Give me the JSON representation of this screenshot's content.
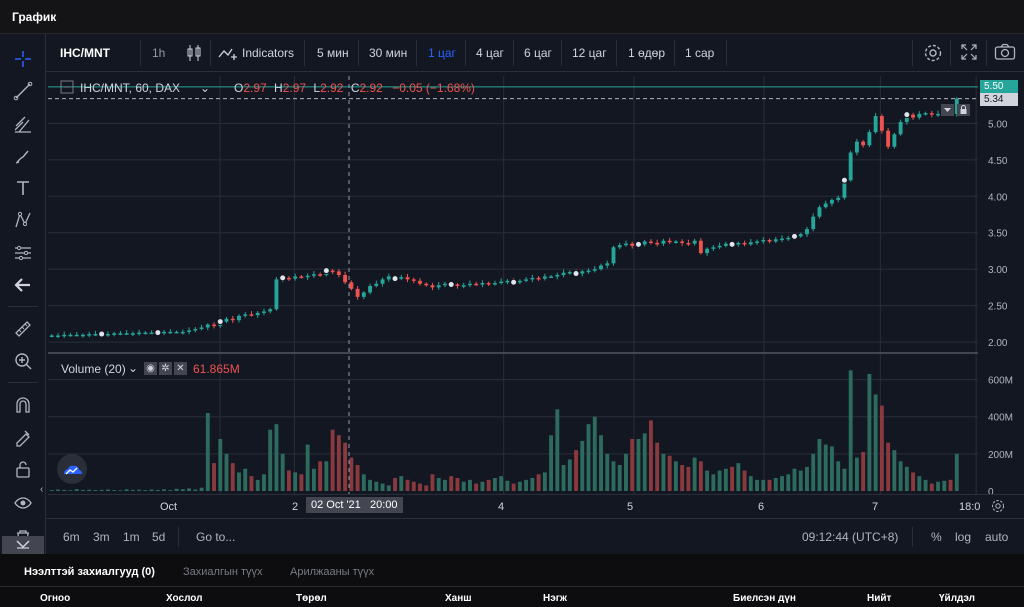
{
  "window": {
    "title": "График"
  },
  "toolbar": {
    "symbol": "IHC/MNT",
    "interval_1h": "1h",
    "indicators": "Indicators",
    "intervals": [
      "5 мин",
      "30 мин",
      "1 цаг",
      "4 цаг",
      "6 цаг",
      "12 цаг",
      "1 өдөр",
      "1 сар"
    ],
    "active_interval": "1 цаг"
  },
  "legend": {
    "title": "IHC/MNT, 60, DAX",
    "o_label": "O",
    "o_value": "2.97",
    "h_label": "H",
    "h_value": "2.97",
    "l_label": "L",
    "l_value": "2.92",
    "c_label": "C",
    "c_value": "2.92",
    "change": "−0.05 (−1.68%)"
  },
  "volume_legend": {
    "title": "Volume (20)",
    "value": "61.865M"
  },
  "price_axis": {
    "ticks": [
      "5.00",
      "4.50",
      "4.00",
      "3.50",
      "3.00",
      "2.50",
      "2.00"
    ],
    "badge_top": "5.50",
    "badge_last": "5.34"
  },
  "volume_axis": {
    "ticks": [
      "600M",
      "400M",
      "200M",
      "0"
    ]
  },
  "time_axis": {
    "ticks": [
      "Oct",
      "2",
      "4",
      "5",
      "6",
      "7",
      "18:0"
    ],
    "crosshair_label": "02 Oct '21   20:00"
  },
  "bottom": {
    "ranges": [
      "6m",
      "3m",
      "1m",
      "5d"
    ],
    "goto": "Go to...",
    "clock": "09:12:44 (UTC+8)",
    "percent": "%",
    "log": "log",
    "auto": "auto"
  },
  "orders": {
    "tabs": [
      "Нээлттэй захиалгууд (0)",
      "Захиалгын түүх",
      "Арилжааны түүх"
    ],
    "columns": [
      "Огноо",
      "Хослол",
      "Төрөл",
      "Ханш",
      "Нэгж",
      "Биелсэн дүн",
      "Нийт",
      "Үйлдэл"
    ]
  },
  "colors": {
    "up": "#26a69a",
    "down": "#ef5350",
    "bg": "#131722",
    "accent": "#2962ff"
  },
  "chart_data": {
    "type": "candlestick",
    "symbol": "IHC/MNT",
    "interval": "60",
    "ylim": [
      1.85,
      5.65
    ],
    "vol_max": 700,
    "closes": [
      2.09,
      2.09,
      2.1,
      2.1,
      2.1,
      2.1,
      2.11,
      2.11,
      2.11,
      2.11,
      2.12,
      2.12,
      2.12,
      2.12,
      2.13,
      2.13,
      2.13,
      2.13,
      2.14,
      2.14,
      2.14,
      2.14,
      2.16,
      2.18,
      2.2,
      2.24,
      2.22,
      2.28,
      2.32,
      2.3,
      2.36,
      2.38,
      2.37,
      2.4,
      2.42,
      2.45,
      2.86,
      2.88,
      2.87,
      2.9,
      2.89,
      2.91,
      2.93,
      2.92,
      2.98,
      2.97,
      2.92,
      2.82,
      2.73,
      2.62,
      2.68,
      2.77,
      2.8,
      2.86,
      2.9,
      2.87,
      2.89,
      2.86,
      2.84,
      2.8,
      2.78,
      2.75,
      2.78,
      2.8,
      2.79,
      2.77,
      2.78,
      2.8,
      2.79,
      2.81,
      2.8,
      2.81,
      2.83,
      2.84,
      2.82,
      2.84,
      2.86,
      2.88,
      2.87,
      2.9,
      2.9,
      2.92,
      2.95,
      2.96,
      2.94,
      2.97,
      2.98,
      3.0,
      3.05,
      3.08,
      3.3,
      3.33,
      3.35,
      3.32,
      3.34,
      3.38,
      3.36,
      3.35,
      3.39,
      3.37,
      3.38,
      3.36,
      3.35,
      3.39,
      3.22,
      3.28,
      3.3,
      3.32,
      3.35,
      3.34,
      3.36,
      3.34,
      3.37,
      3.38,
      3.4,
      3.38,
      3.41,
      3.42,
      3.43,
      3.45,
      3.48,
      3.55,
      3.72,
      3.85,
      3.9,
      3.95,
      3.98,
      4.22,
      4.6,
      4.75,
      4.7,
      4.88,
      5.1,
      4.9,
      4.68,
      4.85,
      5.02,
      5.12,
      5.08,
      5.13,
      5.14,
      5.12,
      5.13,
      5.15,
      5.13,
      5.34
    ],
    "volumes": [
      5,
      8,
      6,
      4,
      10,
      6,
      7,
      5,
      6,
      8,
      5,
      4,
      9,
      6,
      7,
      5,
      8,
      6,
      9,
      5,
      12,
      10,
      14,
      8,
      18,
      420,
      150,
      280,
      200,
      150,
      100,
      120,
      80,
      60,
      90,
      330,
      360,
      200,
      110,
      100,
      90,
      250,
      120,
      160,
      160,
      330,
      300,
      260,
      180,
      140,
      90,
      60,
      50,
      40,
      30,
      70,
      80,
      60,
      50,
      40,
      30,
      90,
      70,
      60,
      80,
      70,
      50,
      60,
      40,
      50,
      60,
      70,
      80,
      55,
      40,
      50,
      60,
      70,
      90,
      100,
      300,
      440,
      140,
      170,
      220,
      270,
      360,
      400,
      300,
      200,
      160,
      140,
      200,
      280,
      280,
      310,
      380,
      260,
      200,
      190,
      160,
      140,
      130,
      180,
      160,
      110,
      90,
      110,
      120,
      130,
      150,
      110,
      80,
      60,
      60,
      60,
      70,
      80,
      90,
      120,
      110,
      130,
      200,
      280,
      250,
      240,
      160,
      120,
      650,
      180,
      210,
      630,
      520,
      460,
      260,
      220,
      160,
      130,
      100,
      80,
      60,
      40,
      50,
      55,
      60,
      200
    ],
    "markers": [
      8,
      17,
      27,
      37,
      44,
      55,
      64,
      74,
      84,
      94,
      109,
      119,
      127,
      137,
      146
    ]
  }
}
